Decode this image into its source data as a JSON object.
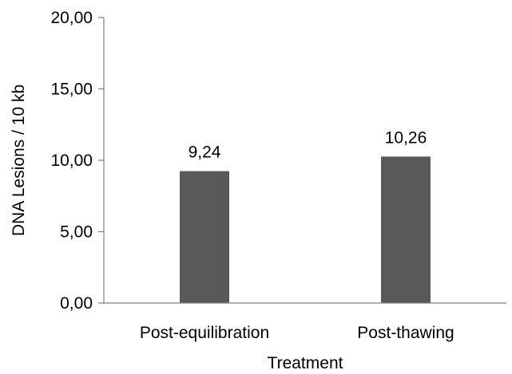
{
  "chart_data": {
    "type": "bar",
    "title": "",
    "xlabel": "Treatment",
    "ylabel": "DNA Lesions / 10 kb",
    "categories": [
      "Post-equilibration",
      "Post-thawing"
    ],
    "values": [
      9.24,
      10.26
    ],
    "data_labels": [
      "9,24",
      "10,26"
    ],
    "ylim": [
      0,
      20
    ],
    "yticks": [
      0,
      5,
      10,
      15,
      20
    ],
    "ytick_labels": [
      "0,00",
      "5,00",
      "10,00",
      "15,00",
      "20,00"
    ],
    "grid": false,
    "legend": "none",
    "bar_color": "#595959",
    "axis_color": "#7f7f7f"
  }
}
